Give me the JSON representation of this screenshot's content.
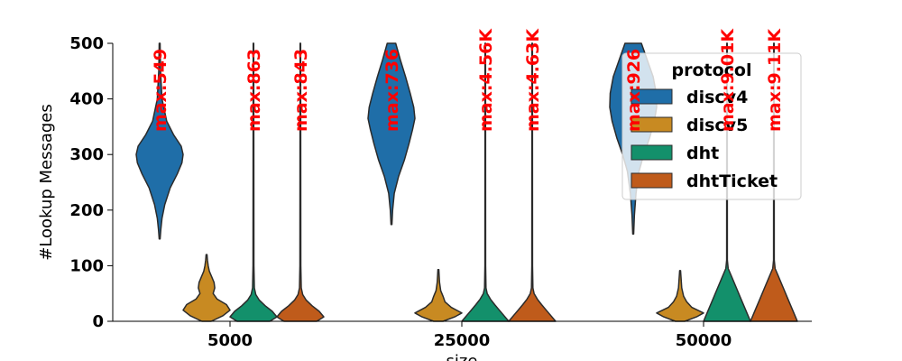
{
  "chart_data": {
    "type": "violin",
    "xlabel": "size",
    "ylabel": "#Lookup Messages",
    "ylim": [
      0,
      500
    ],
    "yticks": [
      0,
      100,
      200,
      300,
      400,
      500
    ],
    "categories": [
      "5000",
      "25000",
      "50000"
    ],
    "legend": {
      "title": "protocol",
      "placement": "upper-right"
    },
    "series": [
      {
        "name": "discv4",
        "color": "#1f6ea8",
        "max_labels": [
          "max:549",
          "max:736",
          "max:926"
        ],
        "violins": [
          {
            "min": 148,
            "max": 500,
            "profile": [
              [
                148,
                0.02
              ],
              [
                165,
                0.05
              ],
              [
                185,
                0.1
              ],
              [
                210,
                0.22
              ],
              [
                240,
                0.45
              ],
              [
                265,
                0.75
              ],
              [
                285,
                0.95
              ],
              [
                300,
                1.0
              ],
              [
                315,
                0.92
              ],
              [
                335,
                0.6
              ],
              [
                360,
                0.3
              ],
              [
                400,
                0.1
              ],
              [
                450,
                0.04
              ],
              [
                500,
                0.02
              ]
            ]
          },
          {
            "min": 174,
            "max": 500,
            "profile": [
              [
                174,
                0.02
              ],
              [
                200,
                0.05
              ],
              [
                230,
                0.12
              ],
              [
                260,
                0.3
              ],
              [
                290,
                0.55
              ],
              [
                320,
                0.75
              ],
              [
                345,
                0.9
              ],
              [
                365,
                1.0
              ],
              [
                385,
                0.95
              ],
              [
                410,
                0.8
              ],
              [
                440,
                0.6
              ],
              [
                470,
                0.38
              ],
              [
                500,
                0.18
              ]
            ]
          },
          {
            "min": 157,
            "max": 500,
            "profile": [
              [
                157,
                0.02
              ],
              [
                190,
                0.05
              ],
              [
                230,
                0.12
              ],
              [
                270,
                0.25
              ],
              [
                300,
                0.45
              ],
              [
                330,
                0.7
              ],
              [
                360,
                0.9
              ],
              [
                385,
                1.0
              ],
              [
                410,
                0.98
              ],
              [
                440,
                0.85
              ],
              [
                470,
                0.6
              ],
              [
                500,
                0.35
              ]
            ]
          }
        ]
      },
      {
        "name": "discv5",
        "color": "#c88a22",
        "max_labels": [],
        "violins": [
          {
            "min": 0,
            "max": 120,
            "profile": [
              [
                0,
                0.2
              ],
              [
                10,
                0.7
              ],
              [
                20,
                1.0
              ],
              [
                30,
                0.85
              ],
              [
                40,
                0.45
              ],
              [
                50,
                0.28
              ],
              [
                60,
                0.35
              ],
              [
                70,
                0.32
              ],
              [
                80,
                0.22
              ],
              [
                90,
                0.12
              ],
              [
                100,
                0.07
              ],
              [
                110,
                0.04
              ],
              [
                120,
                0.02
              ]
            ]
          },
          {
            "min": 0,
            "max": 93,
            "profile": [
              [
                0,
                0.2
              ],
              [
                8,
                0.7
              ],
              [
                15,
                1.0
              ],
              [
                25,
                0.55
              ],
              [
                35,
                0.28
              ],
              [
                45,
                0.2
              ],
              [
                55,
                0.1
              ],
              [
                70,
                0.05
              ],
              [
                93,
                0.02
              ]
            ]
          },
          {
            "min": 0,
            "max": 91,
            "profile": [
              [
                0,
                0.2
              ],
              [
                8,
                0.7
              ],
              [
                15,
                1.0
              ],
              [
                25,
                0.5
              ],
              [
                35,
                0.28
              ],
              [
                45,
                0.15
              ],
              [
                60,
                0.07
              ],
              [
                91,
                0.02
              ]
            ]
          }
        ]
      },
      {
        "name": "dht",
        "color": "#13906b",
        "max_labels": [
          "max:863",
          "max:4.56K",
          "max:9.01K"
        ],
        "violins": [
          {
            "min": 0,
            "max": 500,
            "profile": [
              [
                0,
                0.7
              ],
              [
                8,
                1.0
              ],
              [
                18,
                0.8
              ],
              [
                28,
                0.5
              ],
              [
                38,
                0.25
              ],
              [
                48,
                0.1
              ],
              [
                60,
                0.04
              ],
              [
                100,
                0.02
              ],
              [
                500,
                0.01
              ]
            ]
          },
          {
            "min": 0,
            "max": 500,
            "profile": [
              [
                0,
                1.0
              ],
              [
                10,
                0.8
              ],
              [
                20,
                0.6
              ],
              [
                30,
                0.4
              ],
              [
                40,
                0.22
              ],
              [
                50,
                0.08
              ],
              [
                60,
                0.03
              ],
              [
                100,
                0.015
              ],
              [
                500,
                0.01
              ]
            ]
          },
          {
            "min": 0,
            "max": 500,
            "profile": [
              [
                0,
                1.0
              ],
              [
                20,
                0.8
              ],
              [
                40,
                0.6
              ],
              [
                60,
                0.4
              ],
              [
                80,
                0.2
              ],
              [
                95,
                0.05
              ],
              [
                110,
                0.015
              ],
              [
                500,
                0.01
              ]
            ]
          }
        ]
      },
      {
        "name": "dhtTicket",
        "color": "#bf5b1b",
        "max_labels": [
          "max:843",
          "max:4.63K",
          "max:9.11K"
        ],
        "violins": [
          {
            "min": 0,
            "max": 500,
            "profile": [
              [
                0,
                0.7
              ],
              [
                8,
                1.0
              ],
              [
                18,
                0.8
              ],
              [
                28,
                0.5
              ],
              [
                38,
                0.25
              ],
              [
                48,
                0.1
              ],
              [
                60,
                0.04
              ],
              [
                100,
                0.02
              ],
              [
                500,
                0.01
              ]
            ]
          },
          {
            "min": 0,
            "max": 500,
            "profile": [
              [
                0,
                1.0
              ],
              [
                10,
                0.8
              ],
              [
                20,
                0.6
              ],
              [
                30,
                0.4
              ],
              [
                40,
                0.22
              ],
              [
                50,
                0.08
              ],
              [
                60,
                0.03
              ],
              [
                100,
                0.015
              ],
              [
                500,
                0.01
              ]
            ]
          },
          {
            "min": 0,
            "max": 500,
            "profile": [
              [
                0,
                1.0
              ],
              [
                20,
                0.8
              ],
              [
                40,
                0.6
              ],
              [
                60,
                0.4
              ],
              [
                80,
                0.2
              ],
              [
                95,
                0.05
              ],
              [
                110,
                0.015
              ],
              [
                500,
                0.01
              ]
            ]
          }
        ]
      }
    ]
  }
}
